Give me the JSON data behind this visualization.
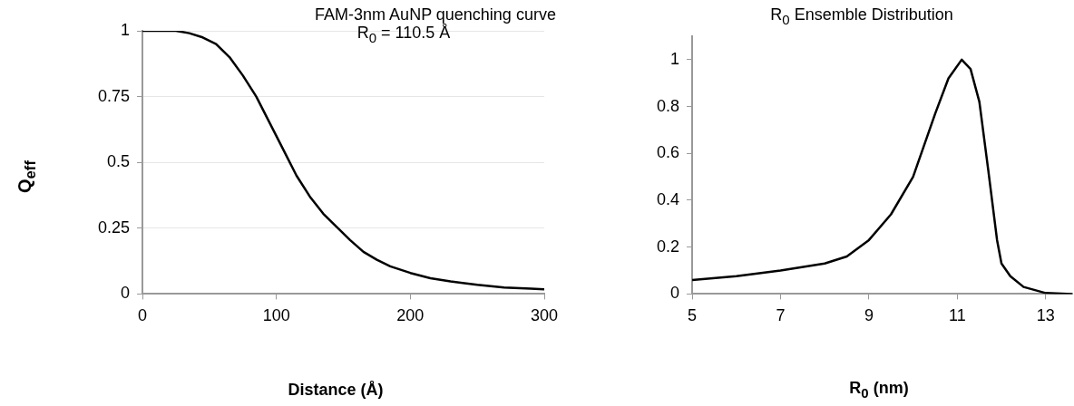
{
  "chart_data": [
    {
      "type": "line",
      "title": "FAM-3nm AuNP quenching curve",
      "subtitle": "R$_{0}$ = 110.5 Å",
      "xlabel": "Distance (Å)",
      "ylabel": "Q$_{eff}$",
      "x": [
        0,
        25,
        35,
        45,
        55,
        65,
        75,
        85,
        95,
        105,
        115,
        125,
        135,
        145,
        155,
        165,
        175,
        185,
        200,
        215,
        230,
        250,
        270,
        290,
        300
      ],
      "series": [
        {
          "color": "#000000",
          "values": [
            1,
            1,
            0.991,
            0.975,
            0.95,
            0.9,
            0.83,
            0.75,
            0.65,
            0.55,
            0.45,
            0.37,
            0.305,
            0.255,
            0.205,
            0.16,
            0.13,
            0.105,
            0.08,
            0.06,
            0.048,
            0.035,
            0.025,
            0.02,
            0.018
          ]
        }
      ],
      "xlim": [
        0,
        300
      ],
      "xticks": [
        0,
        100,
        200,
        300
      ],
      "ylim": [
        0,
        1
      ],
      "yticks": [
        0,
        0.25,
        0.5,
        0.75,
        1
      ],
      "grid": "y",
      "legend": false,
      "marker": "none",
      "line_style": "solid"
    },
    {
      "type": "line",
      "title": "R$_{0}$ Ensemble Distribution",
      "xlabel": "R$_{0}$ (nm)",
      "x": [
        5,
        6,
        7,
        8,
        8.5,
        9,
        9.5,
        10,
        10.5,
        10.8,
        11.1,
        11.3,
        11.5,
        11.7,
        11.9,
        12,
        12.2,
        12.5,
        13,
        13.6
      ],
      "series": [
        {
          "color": "#000000",
          "values": [
            0.06,
            0.076,
            0.1,
            0.13,
            0.16,
            0.23,
            0.34,
            0.5,
            0.77,
            0.92,
            1,
            0.96,
            0.82,
            0.53,
            0.23,
            0.13,
            0.076,
            0.03,
            0.004,
            0
          ]
        }
      ],
      "xlim": [
        5,
        13.6
      ],
      "xticks": [
        5,
        7,
        9,
        11,
        13
      ],
      "ylim": [
        0,
        1.1
      ],
      "yticks": [
        0,
        0.2,
        0.4,
        0.6,
        0.8,
        1
      ],
      "grid": false,
      "legend": false,
      "marker": "none",
      "line_style": "solid"
    }
  ]
}
